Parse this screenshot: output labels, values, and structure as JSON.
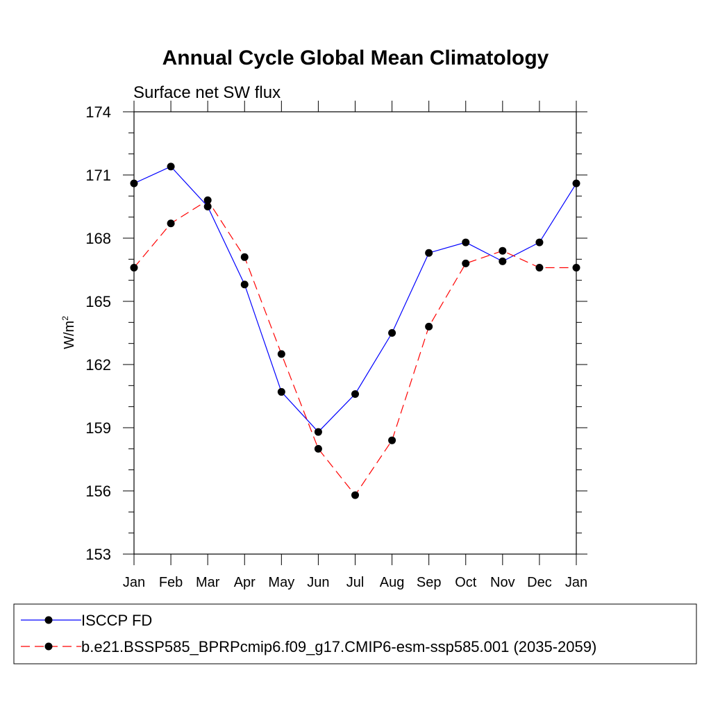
{
  "chart_data": {
    "type": "line",
    "title": "Annual Cycle Global Mean Climatology",
    "subtitle": "Surface net SW flux",
    "ylabel_base": "W/m",
    "ylabel_sup": "2",
    "xlabel": "",
    "categories": [
      "Jan",
      "Feb",
      "Mar",
      "Apr",
      "May",
      "Jun",
      "Jul",
      "Aug",
      "Sep",
      "Oct",
      "Nov",
      "Dec",
      "Jan"
    ],
    "ylim": [
      153,
      174
    ],
    "yticks": [
      153,
      156,
      159,
      162,
      165,
      168,
      171,
      174
    ],
    "ytick_labels": [
      "153",
      "156",
      "159",
      "162",
      "165",
      "168",
      "171",
      "174"
    ],
    "y_minor_step": 1,
    "grid": false,
    "legend_position": "bottom",
    "series": [
      {
        "name": "ISCCP FD",
        "color": "#0000ff",
        "dash": "solid",
        "values": [
          170.6,
          171.4,
          169.5,
          165.8,
          160.7,
          158.8,
          160.6,
          163.5,
          167.3,
          167.8,
          166.9,
          167.8,
          170.6
        ]
      },
      {
        "name": "b.e21.BSSP585_BPRPcmip6.f09_g17.CMIP6-esm-ssp585.001 (2035-2059)",
        "color": "#ff0000",
        "dash": "dashed",
        "values": [
          166.6,
          168.7,
          169.8,
          167.1,
          162.5,
          158.0,
          155.8,
          158.4,
          163.8,
          166.8,
          167.4,
          166.6,
          166.6
        ]
      }
    ]
  }
}
